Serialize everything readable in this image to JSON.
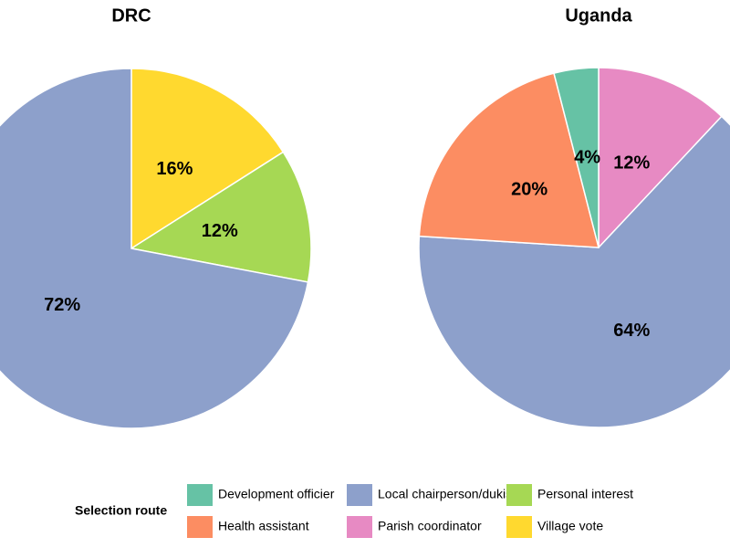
{
  "chart_data": [
    {
      "type": "pie",
      "title": "DRC",
      "categories": [
        "Village vote",
        "Personal interest",
        "Local chairperson/dukis"
      ],
      "values": [
        16,
        12,
        72
      ],
      "value_labels": [
        "16%",
        "12%",
        "72%"
      ],
      "colors": [
        "#ffd92f",
        "#a6d854",
        "#8da0cb"
      ]
    },
    {
      "type": "pie",
      "title": "Uganda",
      "categories": [
        "Parish coordinator",
        "Local chairperson/dukis",
        "Health assistant",
        "Development officier"
      ],
      "values": [
        12,
        64,
        20,
        4
      ],
      "value_labels": [
        "12%",
        "64%",
        "20%",
        "4%"
      ],
      "colors": [
        "#e78ac3",
        "#8da0cb",
        "#fc8d62",
        "#66c2a5"
      ]
    }
  ],
  "legend": {
    "title": "Selection route",
    "items": [
      {
        "name": "Development officier",
        "color": "#66c2a5"
      },
      {
        "name": "Health assistant",
        "color": "#fc8d62"
      },
      {
        "name": "Local chairperson/dukis",
        "color": "#8da0cb"
      },
      {
        "name": "Parish coordinator",
        "color": "#e78ac3"
      },
      {
        "name": "Personal interest",
        "color": "#a6d854"
      },
      {
        "name": "Village vote",
        "color": "#ffd92f"
      }
    ]
  }
}
